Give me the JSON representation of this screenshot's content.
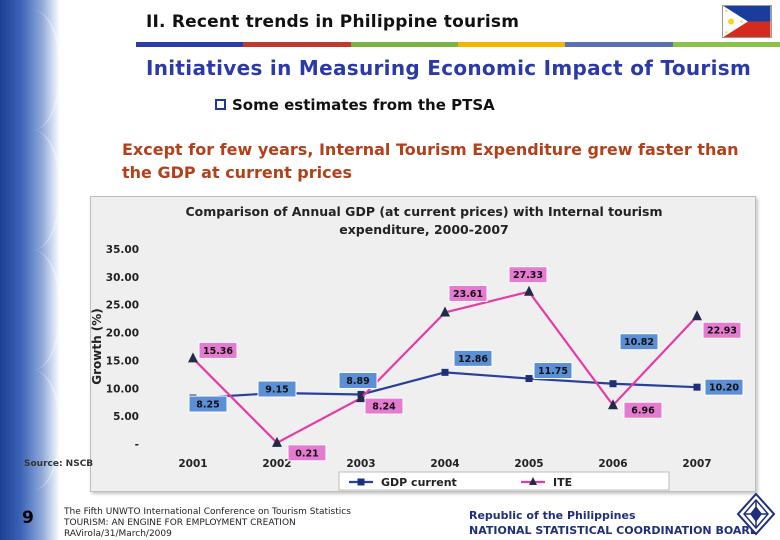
{
  "header": {
    "section_title": "II. Recent trends in Philippine tourism",
    "bar_colors": [
      "#2b3ea8",
      "#c0392b",
      "#7cb342",
      "#f4b400",
      "#5b6fb5",
      "#8bc34a"
    ]
  },
  "slide": {
    "heading": "Initiatives in Measuring Economic Impact of Tourism",
    "bullet": "Some estimates from the PTSA",
    "subheading": "Except for few years, Internal Tourism Expenditure grew faster than the GDP at current prices",
    "source": "Source: NSCB"
  },
  "footer": {
    "page_number": "9",
    "conference_line1": "The Fifth UNWTO International Conference on Tourism Statistics",
    "conference_line2": "TOURISM: AN ENGINE FOR EMPLOYMENT CREATION",
    "conference_line3": "RAVirola/31/March/2009",
    "org_line1": "Republic of the Philippines",
    "org_line2": "NATIONAL STATISTICAL COORDINATION BOARD"
  },
  "chart_data": {
    "type": "line",
    "title_line1": "Comparison of Annual GDP (at current prices) with Internal tourism",
    "title_line2": "expenditure, 2000-2007",
    "ylabel": "Growth (%)",
    "xlabel": "",
    "x": [
      "2001",
      "2002",
      "2003",
      "2004",
      "2005",
      "2006",
      "2007"
    ],
    "ylim": [
      0,
      35
    ],
    "yticks": [
      "35.00",
      "30.00",
      "25.00",
      "20.00",
      "15.00",
      "10.00",
      "5.00",
      "-"
    ],
    "grid": false,
    "legend_position": "bottom",
    "series": [
      {
        "name": "GDP current",
        "color": "#2a3f9a",
        "marker": "square",
        "values": [
          8.25,
          9.15,
          8.89,
          12.86,
          11.75,
          10.82,
          10.2
        ],
        "labels": [
          "8.25",
          "9.15",
          "8.89",
          "12.86",
          "11.75",
          "10.82",
          "10.20"
        ]
      },
      {
        "name": "ITE",
        "color": "#e63aa6",
        "marker": "triangle",
        "values": [
          15.36,
          0.21,
          8.24,
          23.61,
          27.33,
          6.96,
          22.93
        ],
        "labels": [
          "15.36",
          "0.21",
          "8.24",
          "23.61",
          "27.33",
          "6.96",
          "22.93"
        ]
      }
    ]
  }
}
